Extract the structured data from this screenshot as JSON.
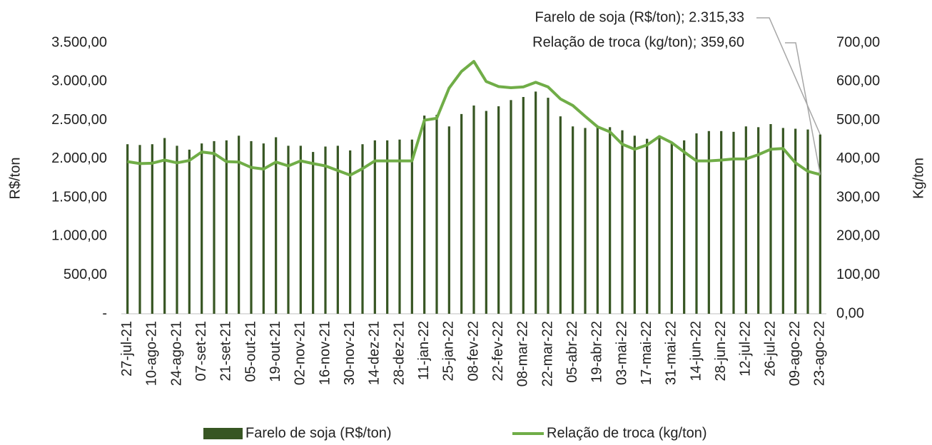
{
  "chart_data": {
    "type": "bar",
    "annotations": [
      "Farelo de soja (R$/ton); 2.315,33",
      "Relação de troca (kg/ton); 359,60"
    ],
    "y_label": "R$/ton",
    "y2_label": "Kg/ton",
    "categories": [
      "27-jul-21",
      null,
      "10-ago-21",
      null,
      "24-ago-21",
      null,
      "07-set-21",
      null,
      "21-set-21",
      null,
      "05-out-21",
      null,
      "19-out-21",
      null,
      "02-nov-21",
      null,
      "16-nov-21",
      null,
      "30-nov-21",
      null,
      "14-dez-21",
      null,
      "28-dez-21",
      null,
      "11-jan-22",
      null,
      "25-jan-22",
      null,
      "08-fev-22",
      null,
      "22-fev-22",
      null,
      "08-mar-22",
      null,
      "22-mar-22",
      null,
      "05-abr-22",
      null,
      "19-abr-22",
      null,
      "03-mai-22",
      null,
      "17-mai-22",
      null,
      "31-mai-22",
      null,
      "14-jun-22",
      null,
      "28-jun-22",
      null,
      "12-jul-22",
      null,
      "26-jul-22",
      null,
      "09-ago-22",
      null,
      "23-ago-22"
    ],
    "series": [
      {
        "name": "Farelo de soja (R$/ton)",
        "type": "bar",
        "color": "#375623",
        "values": [
          2190,
          2180,
          2190,
          2270,
          2170,
          2120,
          2200,
          2230,
          2240,
          2300,
          2230,
          2200,
          2280,
          2170,
          2170,
          2090,
          2160,
          2170,
          2110,
          2190,
          2240,
          2240,
          2250,
          2250,
          2560,
          2570,
          2420,
          2580,
          2690,
          2620,
          2680,
          2760,
          2800,
          2870,
          2790,
          2550,
          2420,
          2400,
          2410,
          2410,
          2370,
          2300,
          2260,
          2290,
          2210,
          2240,
          2330,
          2360,
          2360,
          2350,
          2420,
          2410,
          2450,
          2400,
          2390,
          2380,
          2315.33
        ]
      },
      {
        "name": "Relação de troca (kg/ton)",
        "type": "line",
        "axis": "y2",
        "color": "#70ad47",
        "values": [
          393,
          388,
          389,
          397,
          390,
          396,
          418,
          414,
          393,
          392,
          378,
          374,
          392,
          382,
          395,
          388,
          382,
          370,
          358,
          375,
          395,
          395,
          395,
          395,
          500,
          505,
          583,
          626,
          652,
          600,
          587,
          584,
          586,
          598,
          586,
          555,
          538,
          510,
          483,
          470,
          438,
          425,
          436,
          458,
          442,
          418,
          395,
          395,
          397,
          400,
          400,
          411,
          425,
          427,
          390,
          368,
          359.6
        ]
      }
    ],
    "ylim": [
      0,
      3500
    ],
    "yticks": [
      {
        "value": 0,
        "label": "-"
      },
      {
        "value": 500,
        "label": "500,00"
      },
      {
        "value": 1000,
        "label": "1.000,00"
      },
      {
        "value": 1500,
        "label": "1.500,00"
      },
      {
        "value": 2000,
        "label": "2.000,00"
      },
      {
        "value": 2500,
        "label": "2.500,00"
      },
      {
        "value": 3000,
        "label": "3.000,00"
      },
      {
        "value": 3500,
        "label": "3.500,00"
      }
    ],
    "y2lim": [
      0,
      700
    ],
    "y2ticks": [
      {
        "value": 0,
        "label": "0,00"
      },
      {
        "value": 100,
        "label": "100,00"
      },
      {
        "value": 200,
        "label": "200,00"
      },
      {
        "value": 300,
        "label": "300,00"
      },
      {
        "value": 400,
        "label": "400,00"
      },
      {
        "value": 500,
        "label": "500,00"
      },
      {
        "value": 600,
        "label": "600,00"
      },
      {
        "value": 700,
        "label": "700,00"
      }
    ],
    "grid": false
  }
}
